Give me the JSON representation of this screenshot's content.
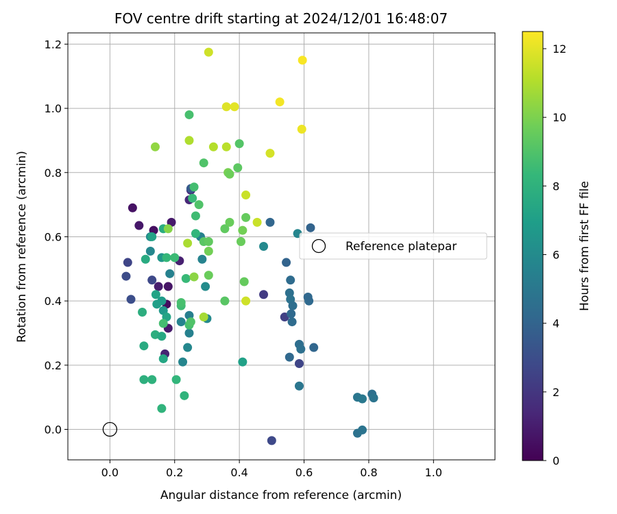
{
  "chart_data": {
    "type": "scatter",
    "title": "FOV centre drift starting at 2024/12/01 16:48:07",
    "xlabel": "Angular distance from reference (arcmin)",
    "ylabel": "Rotation from reference (arcmin)",
    "xlim": [
      -0.13,
      1.19
    ],
    "ylim": [
      -0.095,
      1.235
    ],
    "xticks": [
      0.0,
      0.2,
      0.4,
      0.6,
      0.8,
      1.0
    ],
    "xtick_labels": [
      "0.0",
      "0.2",
      "0.4",
      "0.6",
      "0.8",
      "1.0"
    ],
    "yticks": [
      0.0,
      0.2,
      0.4,
      0.6,
      0.8,
      1.0,
      1.2
    ],
    "ytick_labels": [
      "0.0",
      "0.2",
      "0.4",
      "0.6",
      "0.8",
      "1.0",
      "1.2"
    ],
    "grid": true,
    "legend": {
      "placement": "right",
      "entries": [
        {
          "label": "Reference platepar",
          "marker": "open-circle"
        }
      ]
    },
    "reference_point": {
      "x": 0.0,
      "y": 0.0
    },
    "colorbar": {
      "label": "Hours from first FF file",
      "colormap": "viridis",
      "range": [
        0,
        12.5
      ],
      "ticks": [
        0,
        2,
        4,
        6,
        8,
        10,
        12
      ],
      "tick_labels": [
        "0",
        "2",
        "4",
        "6",
        "8",
        "10",
        "12"
      ]
    },
    "viridis_stops": [
      "#440154",
      "#482878",
      "#3e4989",
      "#31688e",
      "#26828e",
      "#1f9e89",
      "#35b779",
      "#6ece58",
      "#b5de2b",
      "#fde725"
    ],
    "points": [
      [
        0.07,
        0.69,
        0.6
      ],
      [
        0.09,
        0.635,
        0.8
      ],
      [
        0.135,
        0.62,
        0.5
      ],
      [
        0.19,
        0.645,
        0.9
      ],
      [
        0.15,
        0.445,
        1.0
      ],
      [
        0.18,
        0.445,
        0.7
      ],
      [
        0.175,
        0.39,
        0.4
      ],
      [
        0.17,
        0.235,
        1.2
      ],
      [
        0.18,
        0.315,
        0.9
      ],
      [
        0.215,
        0.525,
        1.1
      ],
      [
        0.245,
        0.715,
        1.4
      ],
      [
        0.25,
        0.745,
        1.6
      ],
      [
        0.055,
        0.52,
        2.6
      ],
      [
        0.05,
        0.477,
        2.9
      ],
      [
        0.065,
        0.405,
        3.0
      ],
      [
        0.13,
        0.465,
        2.8
      ],
      [
        0.475,
        0.42,
        2.2
      ],
      [
        0.54,
        0.35,
        2.4
      ],
      [
        0.585,
        0.205,
        2.6
      ],
      [
        0.5,
        -0.035,
        2.8
      ],
      [
        0.25,
        0.75,
        3.5
      ],
      [
        0.545,
        0.52,
        4.0
      ],
      [
        0.495,
        0.645,
        4.1
      ],
      [
        0.555,
        0.225,
        4.2
      ],
      [
        0.558,
        0.465,
        4.4
      ],
      [
        0.555,
        0.425,
        4.6
      ],
      [
        0.558,
        0.405,
        4.7
      ],
      [
        0.565,
        0.385,
        4.5
      ],
      [
        0.56,
        0.36,
        4.3
      ],
      [
        0.563,
        0.335,
        4.4
      ],
      [
        0.615,
        0.4,
        4.3
      ],
      [
        0.612,
        0.412,
        4.2
      ],
      [
        0.62,
        0.628,
        4.0
      ],
      [
        0.63,
        0.255,
        4.1
      ],
      [
        0.585,
        0.265,
        4.5
      ],
      [
        0.59,
        0.25,
        4.6
      ],
      [
        0.585,
        0.135,
        4.9
      ],
      [
        0.765,
        -0.012,
        4.7
      ],
      [
        0.78,
        -0.002,
        4.8
      ],
      [
        0.765,
        0.1,
        4.9
      ],
      [
        0.78,
        0.095,
        5.0
      ],
      [
        0.81,
        0.11,
        4.6
      ],
      [
        0.815,
        0.098,
        4.8
      ],
      [
        0.185,
        0.485,
        5.5
      ],
      [
        0.245,
        0.355,
        5.4
      ],
      [
        0.22,
        0.335,
        5.6
      ],
      [
        0.245,
        0.3,
        5.5
      ],
      [
        0.24,
        0.255,
        5.8
      ],
      [
        0.225,
        0.21,
        5.7
      ],
      [
        0.285,
        0.53,
        5.6
      ],
      [
        0.28,
        0.6,
        5.5
      ],
      [
        0.3,
        0.345,
        5.9
      ],
      [
        0.295,
        0.445,
        6.0
      ],
      [
        0.475,
        0.57,
        5.9
      ],
      [
        0.58,
        0.61,
        5.7
      ],
      [
        0.125,
        0.555,
        5.8
      ],
      [
        0.125,
        0.6,
        6.0
      ],
      [
        0.16,
        0.535,
        6.6
      ],
      [
        0.16,
        0.4,
        6.8
      ],
      [
        0.165,
        0.37,
        6.7
      ],
      [
        0.175,
        0.35,
        7.3
      ],
      [
        0.145,
        0.39,
        7.0
      ],
      [
        0.142,
        0.42,
        7.2
      ],
      [
        0.13,
        0.6,
        7.2
      ],
      [
        0.11,
        0.53,
        7.6
      ],
      [
        0.1,
        0.365,
        7.8
      ],
      [
        0.105,
        0.26,
        7.6
      ],
      [
        0.14,
        0.295,
        7.8
      ],
      [
        0.16,
        0.29,
        7.5
      ],
      [
        0.165,
        0.22,
        7.4
      ],
      [
        0.105,
        0.155,
        7.9
      ],
      [
        0.13,
        0.155,
        8.0
      ],
      [
        0.16,
        0.065,
        8.1
      ],
      [
        0.205,
        0.155,
        8.2
      ],
      [
        0.23,
        0.105,
        8.1
      ],
      [
        0.165,
        0.625,
        7.7
      ],
      [
        0.175,
        0.535,
        8.3
      ],
      [
        0.2,
        0.535,
        8.5
      ],
      [
        0.235,
        0.47,
        8.4
      ],
      [
        0.22,
        0.385,
        8.6
      ],
      [
        0.22,
        0.395,
        8.8
      ],
      [
        0.165,
        0.33,
        8.7
      ],
      [
        0.245,
        0.325,
        8.8
      ],
      [
        0.25,
        0.335,
        9.0
      ],
      [
        0.265,
        0.61,
        8.2
      ],
      [
        0.265,
        0.665,
        8.6
      ],
      [
        0.255,
        0.72,
        8.4
      ],
      [
        0.26,
        0.755,
        8.7
      ],
      [
        0.275,
        0.7,
        9.0
      ],
      [
        0.245,
        0.98,
        8.8
      ],
      [
        0.29,
        0.83,
        9.0
      ],
      [
        0.41,
        0.21,
        7.1
      ],
      [
        0.355,
        0.4,
        9.2
      ],
      [
        0.355,
        0.625,
        9.4
      ],
      [
        0.37,
        0.645,
        9.6
      ],
      [
        0.395,
        0.815,
        9.3
      ],
      [
        0.4,
        0.89,
        9.1
      ],
      [
        0.405,
        0.585,
        9.6
      ],
      [
        0.41,
        0.62,
        9.8
      ],
      [
        0.42,
        0.66,
        9.5
      ],
      [
        0.415,
        0.46,
        9.5
      ],
      [
        0.365,
        0.8,
        9.9
      ],
      [
        0.37,
        0.795,
        9.7
      ],
      [
        0.29,
        0.585,
        9.2
      ],
      [
        0.305,
        0.585,
        9.4
      ],
      [
        0.305,
        0.48,
        9.6
      ],
      [
        0.305,
        0.555,
        9.8
      ],
      [
        0.18,
        0.625,
        10.2
      ],
      [
        0.26,
        0.475,
        10.3
      ],
      [
        0.14,
        0.88,
        10.4
      ],
      [
        0.24,
        0.58,
        10.9
      ],
      [
        0.245,
        0.9,
        11.0
      ],
      [
        0.29,
        0.35,
        10.8
      ],
      [
        0.32,
        0.88,
        11.1
      ],
      [
        0.36,
        0.88,
        11.2
      ],
      [
        0.42,
        0.73,
        11.5
      ],
      [
        0.42,
        0.4,
        11.6
      ],
      [
        0.455,
        0.645,
        11.5
      ],
      [
        0.495,
        0.86,
        11.7
      ],
      [
        0.305,
        1.175,
        11.6
      ],
      [
        0.36,
        1.005,
        11.9
      ],
      [
        0.385,
        1.005,
        12.0
      ],
      [
        0.525,
        1.02,
        12.3
      ],
      [
        0.595,
        1.15,
        12.4
      ],
      [
        0.593,
        0.935,
        12.2
      ]
    ]
  }
}
